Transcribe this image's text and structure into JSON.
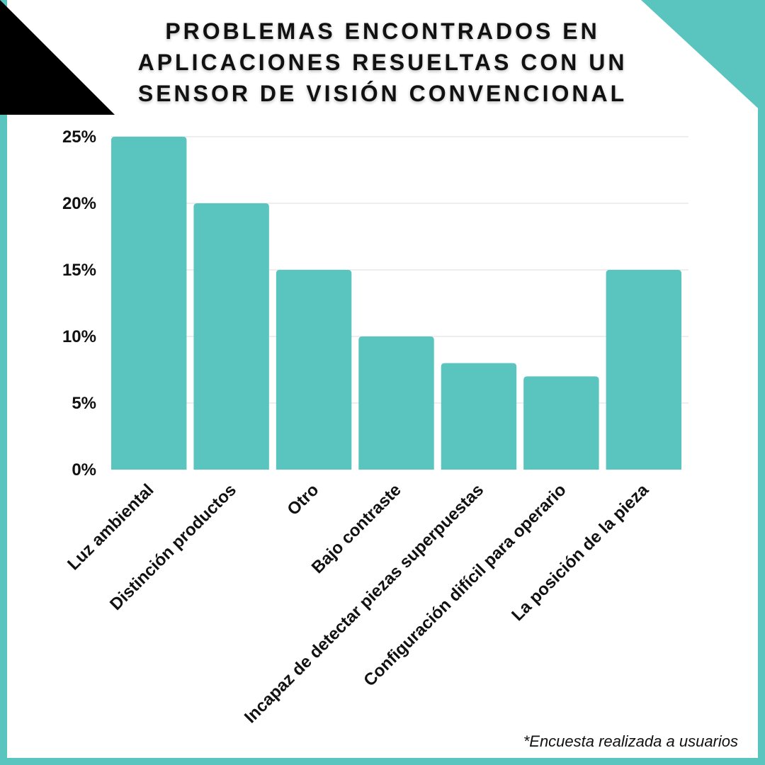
{
  "chart_data": {
    "type": "bar",
    "title": "PROBLEMAS ENCONTRADOS EN\nAPLICACIONES RESUELTAS CON UN\nSENSOR DE VISIÓN CONVENCIONAL",
    "categories": [
      "Luz ambiental",
      "Distinción productos",
      "Otro",
      "Bajo contraste",
      "Incapaz de detectar piezas superpuestas",
      "Configuración difícil para operario",
      "La posición de la pieza"
    ],
    "values": [
      25,
      20,
      15,
      10,
      8,
      7,
      15
    ],
    "ylim": [
      0,
      25
    ],
    "yticks": [
      0,
      5,
      10,
      15,
      20,
      25
    ],
    "ytick_labels": [
      "0%",
      "5%",
      "10%",
      "15%",
      "20%",
      "25%"
    ],
    "grid": true,
    "legend": "none",
    "bar_color": "#59c5be"
  },
  "footnote": "*Encuesta realizada a usuarios",
  "colors": {
    "accent": "#59c5be",
    "dark_corner": "#000000",
    "text": "#111111",
    "grid": "#dddddd"
  }
}
